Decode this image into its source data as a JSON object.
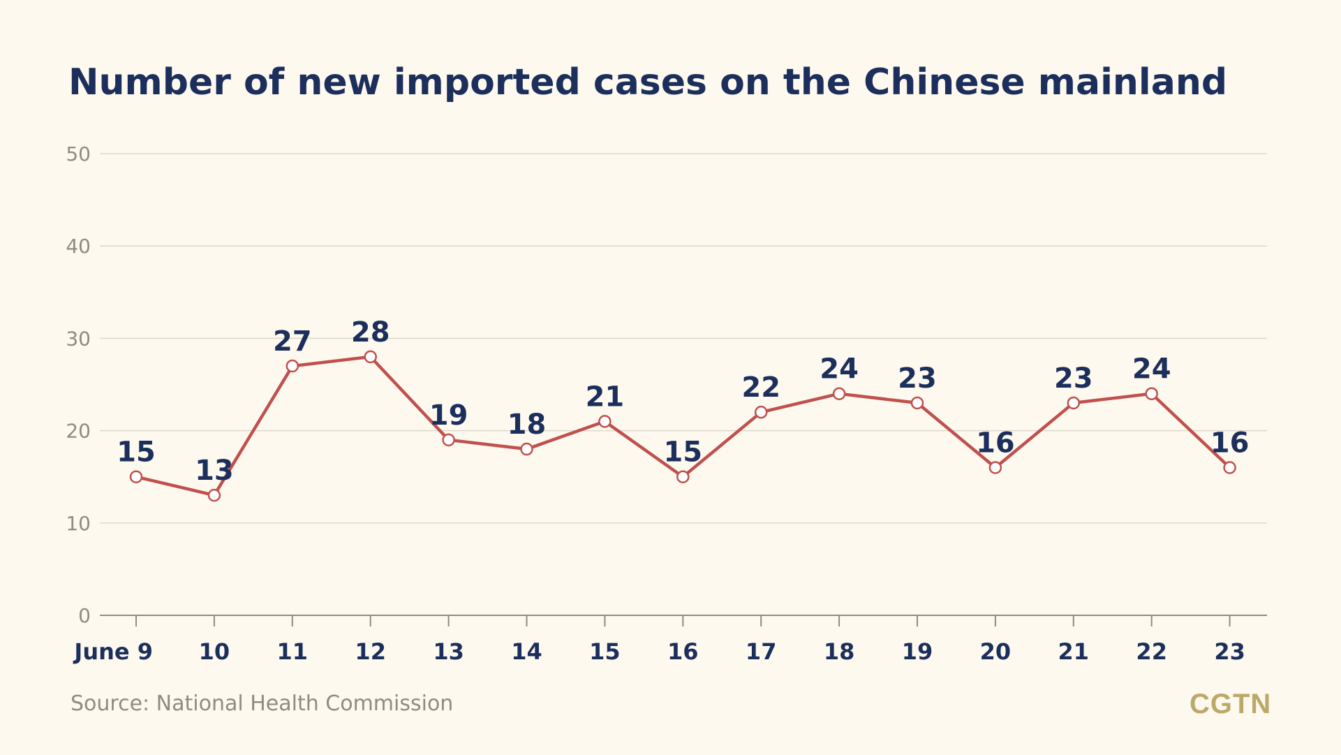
{
  "chart_data": {
    "type": "line",
    "title": "Number of new imported cases on the Chinese mainland",
    "categories": [
      "June 9",
      "10",
      "11",
      "12",
      "13",
      "14",
      "15",
      "16",
      "17",
      "18",
      "19",
      "20",
      "21",
      "22",
      "23"
    ],
    "values": [
      15,
      13,
      27,
      28,
      19,
      18,
      21,
      15,
      22,
      24,
      23,
      16,
      23,
      24,
      16
    ],
    "xlabel": "",
    "ylabel": "",
    "ylim": [
      0,
      50
    ],
    "yticks": [
      0,
      10,
      20,
      30,
      40,
      50
    ],
    "grid": true,
    "data_labels": true,
    "colors": {
      "line": "#C0504D",
      "marker_fill": "#FFFFFF",
      "data_label": "#1C2F5C",
      "grid": "#DCD8CB",
      "axis": "#8E8B84",
      "background": "#FDF9EE"
    }
  },
  "source": "Source: National Health Commission",
  "logo": "CGTN"
}
